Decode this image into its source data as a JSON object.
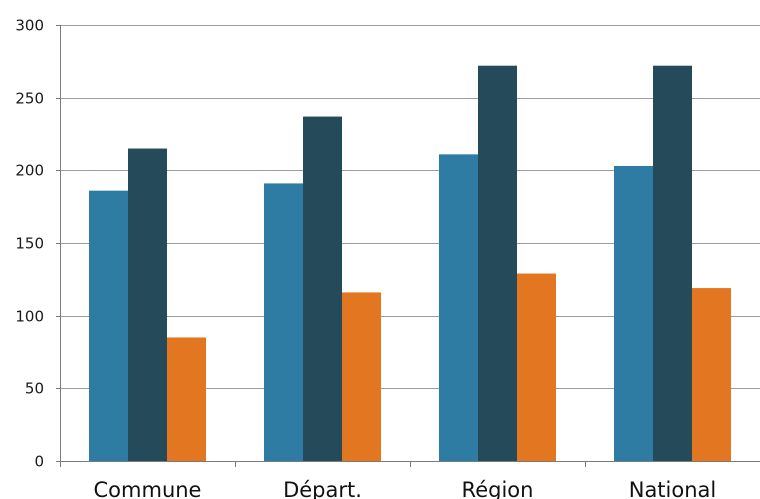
{
  "chart_data": {
    "type": "bar",
    "title": "",
    "xlabel": "",
    "ylabel": "",
    "categories": [
      "Commune",
      "Départ.",
      "Région",
      "National"
    ],
    "series": [
      {
        "values": [
          186,
          191,
          211,
          203
        ],
        "color": "#2e7ca3"
      },
      {
        "values": [
          215,
          237,
          272,
          272
        ],
        "color": "#254b5b"
      },
      {
        "values": [
          85,
          116,
          129,
          119
        ],
        "color": "#e37621"
      }
    ],
    "ylim": [
      0,
      300
    ],
    "yticks": [
      0,
      50,
      100,
      150,
      200,
      250,
      300
    ],
    "grid": true,
    "legend": "none"
  }
}
